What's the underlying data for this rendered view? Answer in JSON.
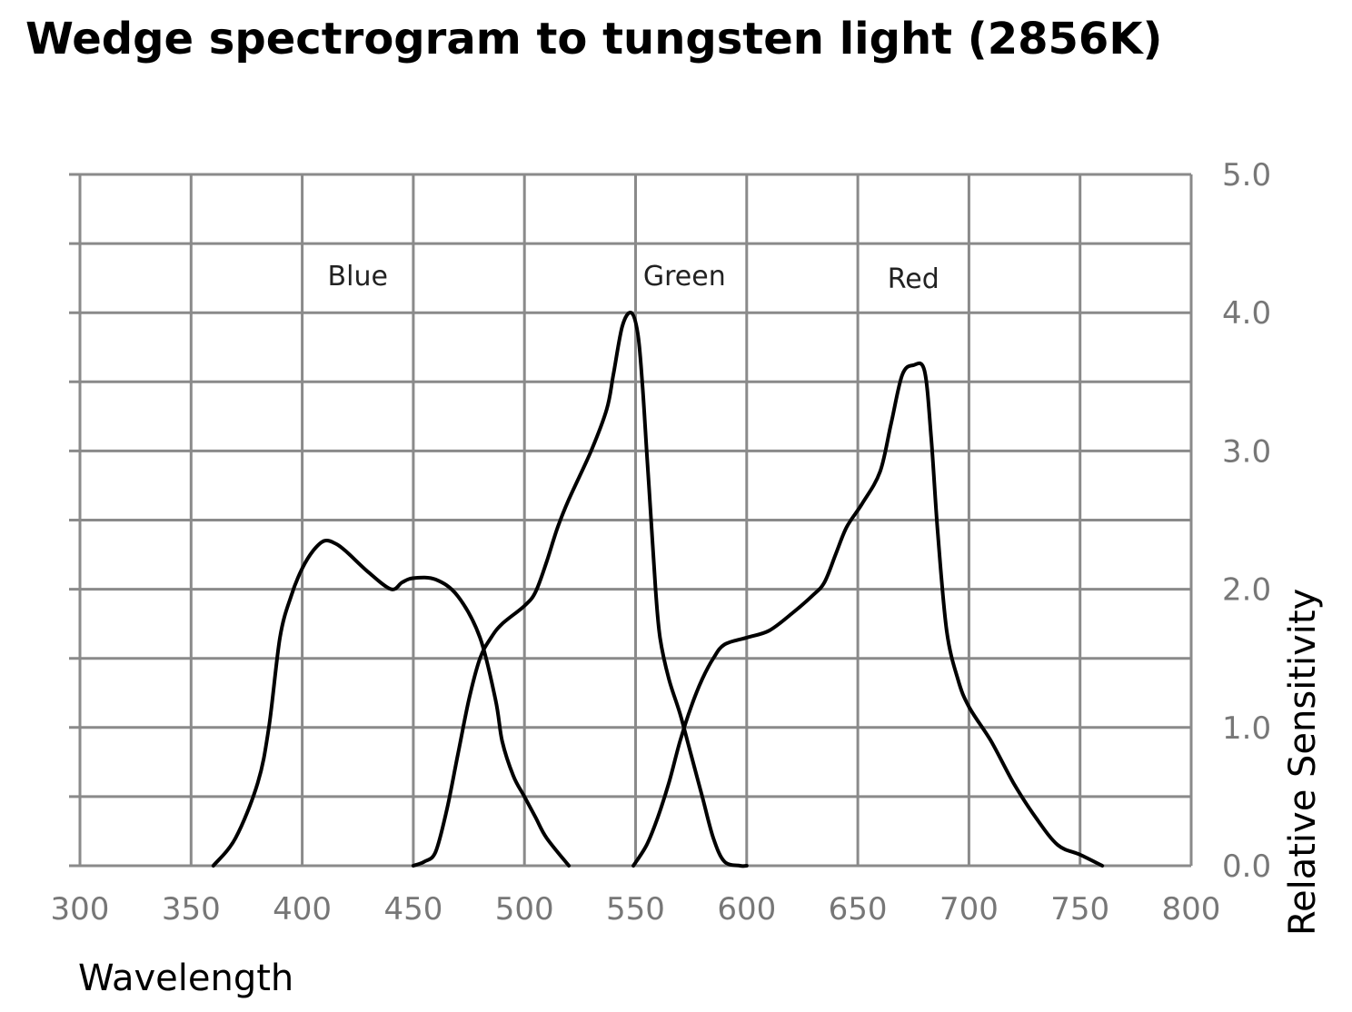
{
  "chart_data": {
    "type": "line",
    "title": "Wedge spectrogram to tungsten light (2856K)",
    "xlabel": "Wavelength",
    "ylabel": "Relative Sensitivity",
    "xlim": [
      300,
      800
    ],
    "ylim": [
      0,
      5
    ],
    "x_ticks": [
      "300",
      "350",
      "400",
      "450",
      "500",
      "550",
      "600",
      "650",
      "700",
      "750",
      "800"
    ],
    "y_ticks": [
      "0.0",
      "1.0",
      "2.0",
      "3.0",
      "4.0",
      "5.0"
    ],
    "x_tick_values": [
      300,
      350,
      400,
      450,
      500,
      550,
      600,
      650,
      700,
      750,
      800
    ],
    "y_tick_values": [
      0,
      1,
      2,
      3,
      4,
      5
    ],
    "grid": true,
    "series": [
      {
        "name": "Blue",
        "points": [
          [
            360,
            0
          ],
          [
            370,
            0.2
          ],
          [
            380,
            0.6
          ],
          [
            385,
            1.0
          ],
          [
            390,
            1.65
          ],
          [
            395,
            1.95
          ],
          [
            400,
            2.15
          ],
          [
            405,
            2.28
          ],
          [
            410,
            2.35
          ],
          [
            415,
            2.33
          ],
          [
            420,
            2.27
          ],
          [
            430,
            2.12
          ],
          [
            440,
            2.0
          ],
          [
            445,
            2.05
          ],
          [
            450,
            2.08
          ],
          [
            460,
            2.07
          ],
          [
            470,
            1.95
          ],
          [
            480,
            1.65
          ],
          [
            487,
            1.2
          ],
          [
            490,
            0.9
          ],
          [
            495,
            0.65
          ],
          [
            500,
            0.5
          ],
          [
            505,
            0.35
          ],
          [
            510,
            0.2
          ],
          [
            520,
            0
          ]
        ]
      },
      {
        "name": "Green",
        "points": [
          [
            450,
            0
          ],
          [
            455,
            0.03
          ],
          [
            460,
            0.1
          ],
          [
            465,
            0.4
          ],
          [
            470,
            0.8
          ],
          [
            475,
            1.2
          ],
          [
            480,
            1.5
          ],
          [
            485,
            1.65
          ],
          [
            490,
            1.75
          ],
          [
            500,
            1.88
          ],
          [
            505,
            1.98
          ],
          [
            510,
            2.2
          ],
          [
            515,
            2.45
          ],
          [
            520,
            2.65
          ],
          [
            530,
            3.0
          ],
          [
            537,
            3.3
          ],
          [
            540,
            3.55
          ],
          [
            544,
            3.9
          ],
          [
            548,
            4.0
          ],
          [
            551,
            3.85
          ],
          [
            553,
            3.5
          ],
          [
            555,
            3.0
          ],
          [
            557,
            2.5
          ],
          [
            559,
            2.0
          ],
          [
            561,
            1.65
          ],
          [
            565,
            1.35
          ],
          [
            570,
            1.1
          ],
          [
            575,
            0.8
          ],
          [
            580,
            0.5
          ],
          [
            585,
            0.2
          ],
          [
            590,
            0.03
          ],
          [
            597,
            0
          ],
          [
            600,
            0
          ]
        ]
      },
      {
        "name": "Red",
        "points": [
          [
            549,
            0
          ],
          [
            555,
            0.15
          ],
          [
            560,
            0.35
          ],
          [
            565,
            0.6
          ],
          [
            570,
            0.9
          ],
          [
            575,
            1.15
          ],
          [
            580,
            1.35
          ],
          [
            585,
            1.5
          ],
          [
            590,
            1.6
          ],
          [
            600,
            1.65
          ],
          [
            610,
            1.7
          ],
          [
            620,
            1.82
          ],
          [
            630,
            1.96
          ],
          [
            635,
            2.05
          ],
          [
            640,
            2.25
          ],
          [
            645,
            2.45
          ],
          [
            652,
            2.62
          ],
          [
            660,
            2.85
          ],
          [
            665,
            3.2
          ],
          [
            670,
            3.55
          ],
          [
            675,
            3.62
          ],
          [
            680,
            3.58
          ],
          [
            683,
            3.1
          ],
          [
            686,
            2.4
          ],
          [
            690,
            1.7
          ],
          [
            695,
            1.35
          ],
          [
            700,
            1.15
          ],
          [
            710,
            0.9
          ],
          [
            720,
            0.6
          ],
          [
            730,
            0.35
          ],
          [
            740,
            0.15
          ],
          [
            750,
            0.08
          ],
          [
            760,
            0
          ]
        ]
      }
    ],
    "annotations": [
      {
        "text": "Blue",
        "x": 425,
        "y": 4.2
      },
      {
        "text": "Green",
        "x": 572,
        "y": 4.2
      },
      {
        "text": "Red",
        "x": 675,
        "y": 4.18
      }
    ],
    "legend": "none",
    "y_axis_side": "right"
  }
}
